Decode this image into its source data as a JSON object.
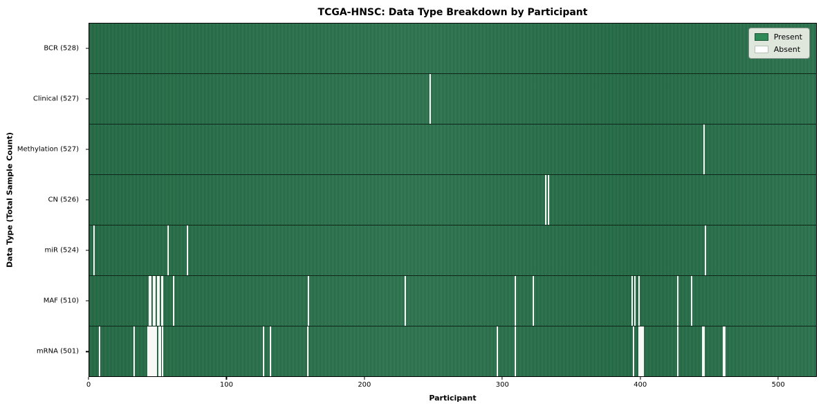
{
  "chart_data": {
    "type": "heatmap",
    "title": "TCGA-HNSC: Data Type Breakdown by Participant",
    "xlabel": "Participant",
    "ylabel": "Data Type (Total Sample Count)",
    "x_ticks": [
      0,
      100,
      200,
      300,
      400,
      500
    ],
    "x_max": 528,
    "grid": false,
    "legend_position": "upper right",
    "legend": [
      {
        "label": "Present",
        "color": "#2e8b57"
      },
      {
        "label": "Absent",
        "color": "#ffffff"
      }
    ],
    "colors": {
      "present": "#2e8b57",
      "absent": "#ffffff",
      "row_edge": "#0c2517"
    },
    "rows": [
      {
        "label": "BCR (528)",
        "data_type": "BCR",
        "count": 528,
        "absent": []
      },
      {
        "label": "Clinical (527)",
        "data_type": "Clinical",
        "count": 527,
        "absent": [
          247
        ]
      },
      {
        "label": "Methylation (527)",
        "data_type": "Methylation",
        "count": 527,
        "absent": [
          446
        ]
      },
      {
        "label": "CN (526)",
        "data_type": "CN",
        "count": 526,
        "absent": [
          331,
          333
        ]
      },
      {
        "label": "miR (524)",
        "data_type": "miR",
        "count": 524,
        "absent": [
          3,
          57,
          71,
          447
        ]
      },
      {
        "label": "MAF (510)",
        "data_type": "MAF",
        "count": 510,
        "absent": [
          43,
          44,
          46,
          47,
          49,
          50,
          52,
          53,
          61,
          159,
          229,
          309,
          322,
          394,
          396,
          399,
          427,
          437
        ]
      },
      {
        "label": "mRNA (501)",
        "data_type": "mRNA",
        "count": 501,
        "absent": [
          7,
          32,
          42,
          43,
          44,
          45,
          46,
          47,
          48,
          50,
          51,
          53,
          126,
          131,
          158,
          296,
          309,
          395,
          399,
          400,
          401,
          402,
          427,
          445,
          446,
          460,
          461
        ]
      }
    ]
  }
}
